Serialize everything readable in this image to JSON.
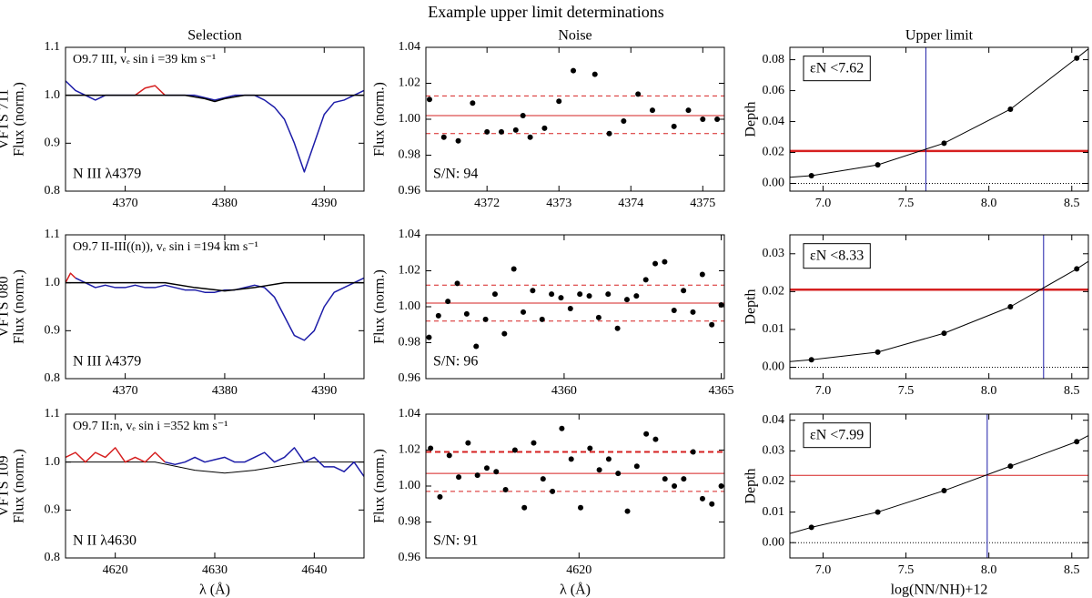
{
  "title": "Example upper limit determinations",
  "chart_data": [
    {
      "type": "line",
      "title": "Selection",
      "row_label": "VFTS 711",
      "ylabel": "Flux (norm.)",
      "xlim": [
        4364,
        4394
      ],
      "xticks": [
        4370,
        4380,
        4390
      ],
      "ylim": [
        0.8,
        1.1
      ],
      "yticks": [
        0.8,
        0.9,
        {
          "value": 1,
          "label": "1.0"
        },
        1.1
      ],
      "annotations": [
        {
          "text": "O9.7 III, vₑ sin i =39 km s⁻¹",
          "corner": "top-left"
        },
        {
          "text": "N III λ4379",
          "corner": "bottom-left"
        }
      ],
      "series": [
        {
          "mode": "line",
          "color": "#1c1ca8",
          "width": 1.5,
          "x": [
            4364,
            4365,
            4366,
            4367,
            4368,
            4369,
            4370,
            4371,
            4372,
            4373,
            4374,
            4375,
            4376,
            4377,
            4378,
            4379,
            4380,
            4381,
            4382,
            4383,
            4384,
            4385,
            4386,
            4387,
            4388,
            4389,
            4390,
            4391,
            4392,
            4393,
            4394
          ],
          "values": [
            1.03,
            1.01,
            1.0,
            0.99,
            1.0,
            1.0,
            1.0,
            1.0,
            null,
            null,
            1.0,
            1.0,
            1.0,
            1.0,
            0.995,
            0.99,
            0.995,
            1.0,
            1.0,
            1.0,
            0.99,
            0.975,
            0.95,
            0.9,
            0.84,
            0.9,
            0.96,
            0.985,
            0.99,
            1.0,
            1.01
          ]
        },
        {
          "mode": "line",
          "color": "#d62020",
          "width": 1.5,
          "x": [
            4371,
            4372,
            4373,
            4374
          ],
          "values": [
            1.0,
            1.015,
            1.02,
            1.0
          ]
        },
        {
          "mode": "line",
          "color": "#000000",
          "width": 1.5,
          "x": [
            4364,
            4376,
            4378,
            4379,
            4380,
            4382,
            4394
          ],
          "values": [
            1,
            1,
            0.993,
            0.987,
            0.993,
            1,
            1
          ]
        }
      ]
    },
    {
      "type": "scatter",
      "title": "Noise",
      "ylabel": "Flux (norm.)",
      "xlim": [
        4371.15,
        4375.3
      ],
      "xticks": [
        4372,
        4373,
        4374,
        4375
      ],
      "ylim": [
        0.96,
        1.04
      ],
      "yticks": [
        0.96,
        0.98,
        {
          "value": 1,
          "label": "1.00"
        },
        1.02,
        1.04
      ],
      "annotations": [
        {
          "text": "S/N:  94",
          "corner": "bottom-left"
        }
      ],
      "hlines": [
        {
          "value": 1.002,
          "color": "#d62020",
          "dash": "none",
          "width": 1
        },
        {
          "value": 0.992,
          "color": "#d62020",
          "dash": "5,4",
          "width": 1
        },
        {
          "value": 1.013,
          "color": "#d62020",
          "dash": "5,4",
          "width": 1
        }
      ],
      "series": [
        {
          "mode": "markers",
          "color": "#000000",
          "x": [
            4371.2,
            4371.4,
            4371.6,
            4371.8,
            4372.0,
            4372.2,
            4372.4,
            4372.5,
            4372.6,
            4372.8,
            4373.0,
            4373.2,
            4373.5,
            4373.7,
            4373.9,
            4374.1,
            4374.3,
            4374.6,
            4374.8,
            4375.0,
            4375.2
          ],
          "values": [
            1.011,
            0.99,
            0.988,
            1.009,
            0.993,
            0.993,
            0.994,
            1.002,
            0.99,
            0.995,
            1.01,
            1.027,
            1.025,
            0.992,
            0.999,
            1.014,
            1.005,
            0.996,
            1.005,
            1.0,
            1.0
          ]
        }
      ]
    },
    {
      "type": "scatter",
      "title": "Upper limit",
      "ylabel": "Depth",
      "xlim": [
        6.8,
        8.6
      ],
      "xticks": [
        {
          "value": 7,
          "label": "7.0"
        },
        7.5,
        {
          "value": 8,
          "label": "8.0"
        },
        8.5
      ],
      "ylim": [
        -0.005,
        0.088
      ],
      "yticks": [
        {
          "value": 0,
          "label": "0.00"
        },
        0.02,
        0.04,
        0.06,
        0.08
      ],
      "annotations": [
        {
          "text": "εN <7.62",
          "corner": "top-left",
          "box": true
        }
      ],
      "hlines": [
        {
          "value": 0,
          "color": "#000000",
          "dash": "1,2",
          "width": 1
        },
        {
          "value": 0.021,
          "color": "#d62020",
          "dash": "none",
          "width": 2.5
        }
      ],
      "vlines": [
        {
          "value": 7.62,
          "color": "#1c1ca8",
          "width": 1
        }
      ],
      "series": [
        {
          "mode": "line",
          "color": "#000000",
          "width": 1,
          "x": [
            6.8,
            6.93,
            7.33,
            7.73,
            8.13,
            8.53,
            8.6
          ],
          "values": [
            0.004,
            0.005,
            0.012,
            0.026,
            0.048,
            0.081,
            0.087
          ]
        },
        {
          "mode": "markers",
          "color": "#000000",
          "x": [
            6.93,
            7.33,
            7.73,
            8.13,
            8.53
          ],
          "values": [
            0.005,
            0.012,
            0.026,
            0.048,
            0.081
          ]
        }
      ]
    },
    {
      "type": "line",
      "row_label": "VFTS 080",
      "ylabel": "Flux (norm.)",
      "xlim": [
        4364,
        4394
      ],
      "xticks": [
        4370,
        4380,
        4390
      ],
      "ylim": [
        0.8,
        1.1
      ],
      "yticks": [
        0.8,
        0.9,
        {
          "value": 1,
          "label": "1.0"
        },
        1.1
      ],
      "annotations": [
        {
          "text": "O9.7 II-III((n)), vₑ sin i =194 km s⁻¹",
          "corner": "top-left"
        },
        {
          "text": "N III λ4379",
          "corner": "bottom-left"
        }
      ],
      "series": [
        {
          "mode": "line",
          "color": "#1c1ca8",
          "width": 1.5,
          "x": [
            4365,
            4366,
            4367,
            4368,
            4369,
            4370,
            4371,
            4372,
            4373,
            4374,
            4375,
            4376,
            4377,
            4378,
            4379,
            4380,
            4381,
            4382,
            4383,
            4384,
            4385,
            4386,
            4387,
            4388,
            4389,
            4390,
            4391,
            4392,
            4393,
            4394
          ],
          "values": [
            1.01,
            1.0,
            0.99,
            0.995,
            0.99,
            0.99,
            0.995,
            0.99,
            0.99,
            0.995,
            0.99,
            0.985,
            0.985,
            0.98,
            0.98,
            0.985,
            0.985,
            0.99,
            0.995,
            0.99,
            0.97,
            0.93,
            0.89,
            0.88,
            0.9,
            0.95,
            0.98,
            0.99,
            1.0,
            1.01
          ]
        },
        {
          "mode": "line",
          "color": "#d62020",
          "width": 1.5,
          "x": [
            4364,
            4364.5,
            4365
          ],
          "values": [
            1.0,
            1.02,
            1.01
          ]
        },
        {
          "mode": "line",
          "color": "#000000",
          "width": 1.5,
          "x": [
            4364,
            4374,
            4377,
            4380,
            4383,
            4386,
            4394
          ],
          "values": [
            1,
            1,
            0.99,
            0.983,
            0.99,
            1,
            1
          ]
        }
      ]
    },
    {
      "type": "scatter",
      "ylabel": "Flux (norm.)",
      "xlim": [
        4355.6,
        4365.1
      ],
      "xticks": [
        4360,
        4365
      ],
      "ylim": [
        0.96,
        1.04
      ],
      "yticks": [
        0.96,
        0.98,
        {
          "value": 1,
          "label": "1.00"
        },
        1.02,
        1.04
      ],
      "annotations": [
        {
          "text": "S/N:  96",
          "corner": "bottom-left"
        }
      ],
      "hlines": [
        {
          "value": 1.002,
          "color": "#d62020",
          "dash": "none",
          "width": 1
        },
        {
          "value": 0.992,
          "color": "#d62020",
          "dash": "5,4",
          "width": 1
        },
        {
          "value": 1.012,
          "color": "#d62020",
          "dash": "5,4",
          "width": 1
        }
      ],
      "series": [
        {
          "mode": "markers",
          "color": "#000000",
          "x": [
            4355.7,
            4356.0,
            4356.3,
            4356.6,
            4356.9,
            4357.2,
            4357.5,
            4357.8,
            4358.1,
            4358.4,
            4358.7,
            4359.0,
            4359.3,
            4359.6,
            4359.9,
            4360.2,
            4360.5,
            4360.8,
            4361.1,
            4361.4,
            4361.7,
            4362.0,
            4362.3,
            4362.6,
            4362.9,
            4363.2,
            4363.5,
            4363.8,
            4364.1,
            4364.4,
            4364.7,
            4365.0
          ],
          "values": [
            0.983,
            0.995,
            1.003,
            1.013,
            0.996,
            0.978,
            0.993,
            1.007,
            0.985,
            1.021,
            0.997,
            1.009,
            0.993,
            1.007,
            1.005,
            0.999,
            1.007,
            1.006,
            0.994,
            1.007,
            0.988,
            1.004,
            1.006,
            1.015,
            1.024,
            1.025,
            0.998,
            1.009,
            0.997,
            1.018,
            0.99,
            1.001
          ]
        }
      ]
    },
    {
      "type": "scatter",
      "ylabel": "Depth",
      "xlim": [
        6.8,
        8.6
      ],
      "xticks": [
        {
          "value": 7,
          "label": "7.0"
        },
        7.5,
        {
          "value": 8,
          "label": "8.0"
        },
        8.5
      ],
      "ylim": [
        -0.003,
        0.035
      ],
      "yticks": [
        {
          "value": 0,
          "label": "0.00"
        },
        0.01,
        0.02,
        0.03
      ],
      "annotations": [
        {
          "text": "εN <8.33",
          "corner": "top-left",
          "box": true
        }
      ],
      "hlines": [
        {
          "value": 0,
          "color": "#000000",
          "dash": "1,2",
          "width": 1
        },
        {
          "value": 0.0205,
          "color": "#d62020",
          "dash": "none",
          "width": 2.5
        }
      ],
      "vlines": [
        {
          "value": 8.33,
          "color": "#1c1ca8",
          "width": 1
        }
      ],
      "series": [
        {
          "mode": "line",
          "color": "#000000",
          "width": 1,
          "x": [
            6.8,
            6.93,
            7.33,
            7.73,
            8.13,
            8.53,
            8.6
          ],
          "values": [
            0.0015,
            0.002,
            0.004,
            0.009,
            0.016,
            0.026,
            0.028
          ]
        },
        {
          "mode": "markers",
          "color": "#000000",
          "x": [
            6.93,
            7.33,
            7.73,
            8.13,
            8.53
          ],
          "values": [
            0.002,
            0.004,
            0.009,
            0.016,
            0.026
          ]
        }
      ]
    },
    {
      "type": "line",
      "row_label": "VFTS 109",
      "ylabel": "Flux (norm.)",
      "xlabel": "λ (Å)",
      "xlim": [
        4615,
        4645
      ],
      "xticks": [
        4620,
        4630,
        4640
      ],
      "ylim": [
        0.8,
        1.1
      ],
      "yticks": [
        0.8,
        0.9,
        {
          "value": 1,
          "label": "1.0"
        },
        1.1
      ],
      "annotations": [
        {
          "text": "O9.7 II:n, vₑ sin i =352 km s⁻¹",
          "corner": "top-left"
        },
        {
          "text": "N II λ4630",
          "corner": "bottom-left"
        }
      ],
      "series": [
        {
          "mode": "line",
          "color": "#000000",
          "width": 1,
          "x": [
            4615,
            4624,
            4628,
            4631,
            4634,
            4639,
            4645
          ],
          "values": [
            1,
            1,
            0.983,
            0.977,
            0.983,
            1,
            1
          ]
        },
        {
          "mode": "line",
          "color": "#d62020",
          "width": 1.5,
          "x": [
            4615,
            4616,
            4617,
            4618,
            4619,
            4620,
            4621,
            4622,
            4623,
            4624,
            4625
          ],
          "values": [
            1.01,
            1.02,
            1.0,
            1.02,
            1.01,
            1.03,
            1.0,
            1.01,
            1.0,
            1.02,
            1.0
          ]
        },
        {
          "mode": "line",
          "color": "#1c1ca8",
          "width": 1.5,
          "x": [
            4625,
            4626,
            4627,
            4628,
            4629,
            4630,
            4631,
            4632,
            4633,
            4634,
            4635,
            4636,
            4637,
            4638,
            4639,
            4640,
            4641,
            4642,
            4643,
            4644,
            4645
          ],
          "values": [
            1.0,
            0.995,
            1.0,
            1.01,
            1.0,
            1.005,
            1.01,
            1.0,
            1.0,
            1.01,
            1.02,
            1.0,
            1.01,
            1.03,
            1.0,
            1.01,
            0.99,
            0.99,
            0.98,
            1.0,
            0.97
          ]
        }
      ]
    },
    {
      "type": "scatter",
      "ylabel": "Flux (norm.)",
      "xlabel": "λ (Å)",
      "xlim": [
        4610.2,
        4629.3
      ],
      "xticks": [
        4620
      ],
      "ylim": [
        0.96,
        1.04
      ],
      "yticks": [
        0.96,
        0.98,
        {
          "value": 1,
          "label": "1.00"
        },
        1.02,
        1.04
      ],
      "annotations": [
        {
          "text": "S/N:  91",
          "corner": "bottom-left"
        }
      ],
      "hlines": [
        {
          "value": 1.007,
          "color": "#d62020",
          "dash": "none",
          "width": 1
        },
        {
          "value": 0.997,
          "color": "#d62020",
          "dash": "5,4",
          "width": 1
        },
        {
          "value": 1.019,
          "color": "#d62020",
          "dash": "6,4",
          "width": 2
        }
      ],
      "series": [
        {
          "mode": "markers",
          "color": "#000000",
          "x": [
            4610.5,
            4611.1,
            4611.7,
            4612.3,
            4612.9,
            4613.5,
            4614.1,
            4614.7,
            4615.3,
            4615.9,
            4616.5,
            4617.1,
            4617.7,
            4618.3,
            4618.9,
            4619.5,
            4620.1,
            4620.7,
            4621.3,
            4621.9,
            4622.5,
            4623.1,
            4623.7,
            4624.3,
            4624.9,
            4625.5,
            4626.1,
            4626.7,
            4627.3,
            4627.9,
            4628.5,
            4629.1
          ],
          "values": [
            1.021,
            0.994,
            1.017,
            1.005,
            1.024,
            1.006,
            1.01,
            1.008,
            0.998,
            1.02,
            0.988,
            1.024,
            1.004,
            0.997,
            1.032,
            1.015,
            0.988,
            1.021,
            1.009,
            1.015,
            1.007,
            0.986,
            1.011,
            1.029,
            1.026,
            1.004,
            1.0,
            1.004,
            1.019,
            0.993,
            0.99,
            1.0
          ]
        }
      ]
    },
    {
      "type": "scatter",
      "ylabel": "Depth",
      "xlabel": "log(NN/NH)+12",
      "xlim": [
        6.8,
        8.6
      ],
      "xticks": [
        {
          "value": 7,
          "label": "7.0"
        },
        7.5,
        {
          "value": 8,
          "label": "8.0"
        },
        8.5
      ],
      "ylim": [
        -0.005,
        0.042
      ],
      "yticks": [
        {
          "value": 0,
          "label": "0.00"
        },
        0.01,
        0.02,
        0.03,
        0.04
      ],
      "annotations": [
        {
          "text": "εN <7.99",
          "corner": "top-left",
          "box": true
        }
      ],
      "hlines": [
        {
          "value": 0,
          "color": "#000000",
          "dash": "1,2",
          "width": 1
        },
        {
          "value": 0.022,
          "color": "#d62020",
          "dash": "none",
          "width": 1
        }
      ],
      "vlines": [
        {
          "value": 7.99,
          "color": "#1c1ca8",
          "width": 1
        }
      ],
      "series": [
        {
          "mode": "line",
          "color": "#000000",
          "width": 1,
          "x": [
            6.8,
            6.93,
            7.33,
            7.73,
            8.13,
            8.53,
            8.6
          ],
          "values": [
            0.003,
            0.005,
            0.01,
            0.017,
            0.025,
            0.033,
            0.035
          ]
        },
        {
          "mode": "markers",
          "color": "#000000",
          "x": [
            6.93,
            7.33,
            7.73,
            8.13,
            8.53
          ],
          "values": [
            0.005,
            0.01,
            0.017,
            0.025,
            0.033
          ]
        }
      ]
    }
  ]
}
